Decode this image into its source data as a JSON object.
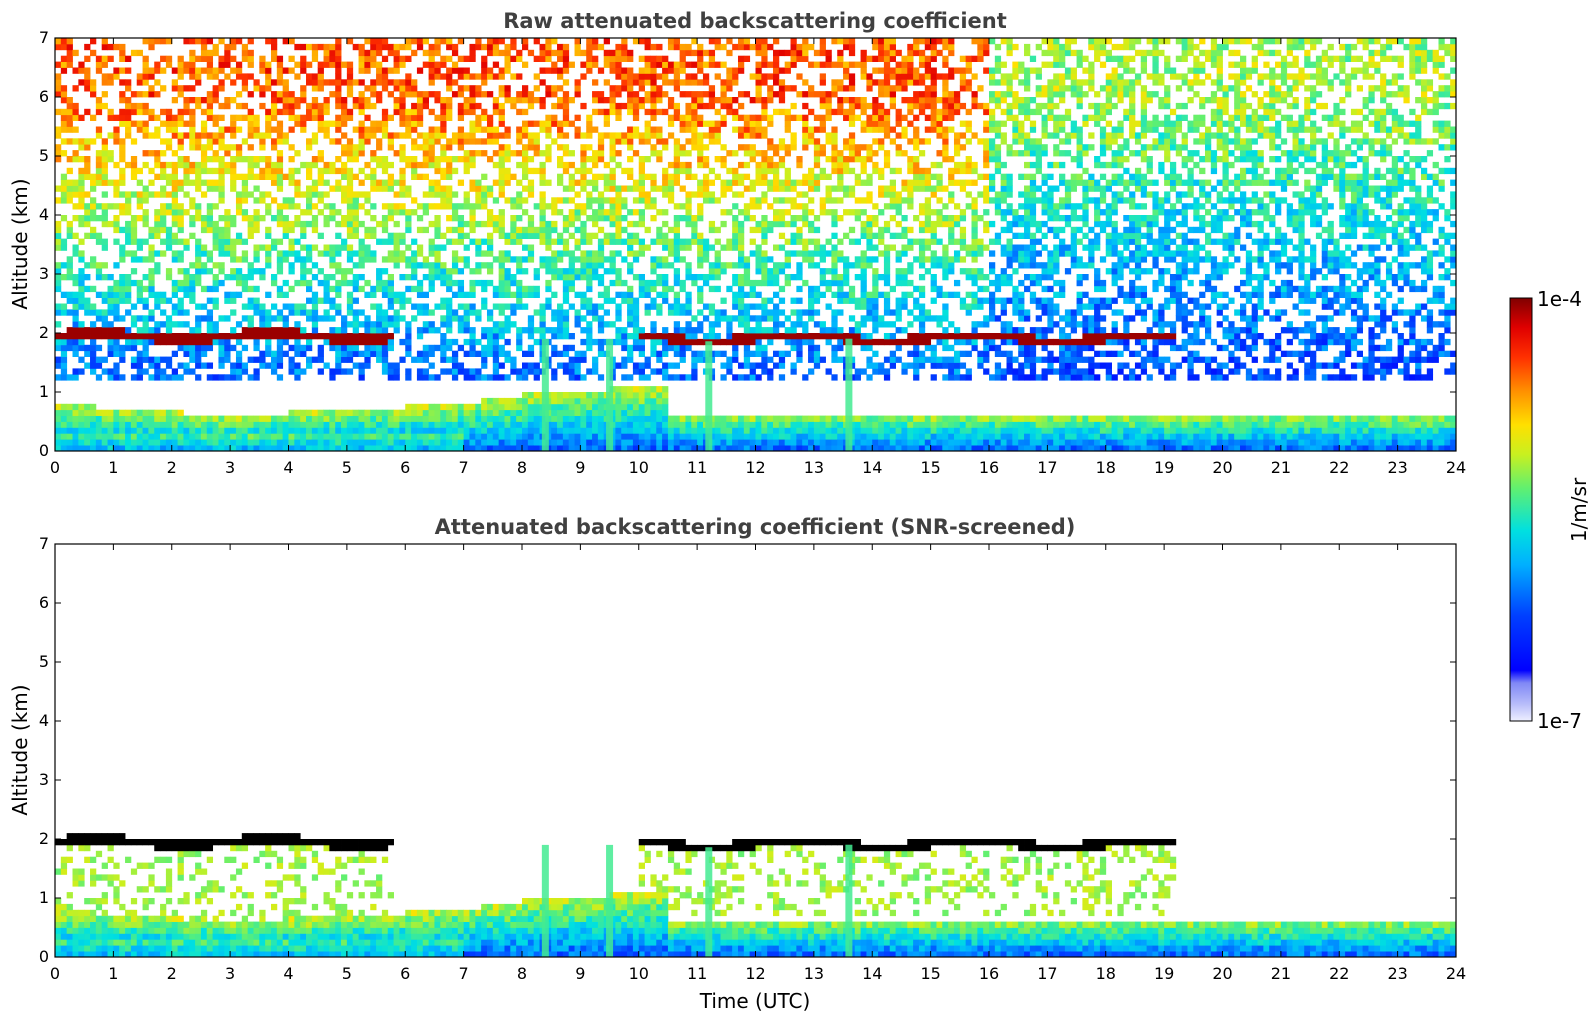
{
  "chart_data": [
    {
      "type": "heatmap",
      "title": "Raw attenuated backscattering coefficient",
      "xlabel": "",
      "ylabel": "Altitude (km)",
      "xlim": [
        0,
        24
      ],
      "ylim": [
        0,
        7
      ],
      "x_ticks": [
        "0",
        "1",
        "2",
        "3",
        "4",
        "5",
        "6",
        "7",
        "8",
        "9",
        "10",
        "11",
        "12",
        "13",
        "14",
        "15",
        "16",
        "17",
        "18",
        "19",
        "20",
        "21",
        "22",
        "23",
        "24"
      ],
      "y_ticks": [
        "0",
        "1",
        "2",
        "3",
        "4",
        "5",
        "6",
        "7"
      ],
      "screened": false,
      "features": {
        "cloud_layer": [
          {
            "x_start": 0.0,
            "x_end": 5.8,
            "altitude": 1.95
          },
          {
            "x_start": 10.0,
            "x_end": 19.2,
            "altitude": 1.92
          }
        ],
        "boundary_layer_top": [
          {
            "x": 0.0,
            "altitude": 0.8
          },
          {
            "x": 3.0,
            "altitude": 0.6
          },
          {
            "x": 5.0,
            "altitude": 0.7
          },
          {
            "x": 7.0,
            "altitude": 0.8
          },
          {
            "x": 8.0,
            "altitude": 0.95
          },
          {
            "x": 9.5,
            "altitude": 1.05
          },
          {
            "x": 10.5,
            "altitude": 1.1
          }
        ],
        "precipitation_streaks": [
          8.4,
          9.5,
          11.2,
          13.6
        ]
      }
    },
    {
      "type": "heatmap",
      "title": "Attenuated backscattering coefficient (SNR-screened)",
      "xlabel": "Time (UTC)",
      "ylabel": "Altitude (km)",
      "xlim": [
        0,
        24
      ],
      "ylim": [
        0,
        7
      ],
      "x_ticks": [
        "0",
        "1",
        "2",
        "3",
        "4",
        "5",
        "6",
        "7",
        "8",
        "9",
        "10",
        "11",
        "12",
        "13",
        "14",
        "15",
        "16",
        "17",
        "18",
        "19",
        "20",
        "21",
        "22",
        "23",
        "24"
      ],
      "y_ticks": [
        "0",
        "1",
        "2",
        "3",
        "4",
        "5",
        "6",
        "7"
      ],
      "screened": true
    }
  ],
  "colorbar": {
    "max_label": "1e-4",
    "min_label": "1e-7",
    "unit_label": "1/m/sr",
    "scale": "log",
    "range": [
      1e-07,
      0.0001
    ],
    "colormap": "jet"
  },
  "colors": {
    "title": "#404040",
    "cloud_raw": "#9b0000",
    "cloud_screened": "#000000"
  }
}
